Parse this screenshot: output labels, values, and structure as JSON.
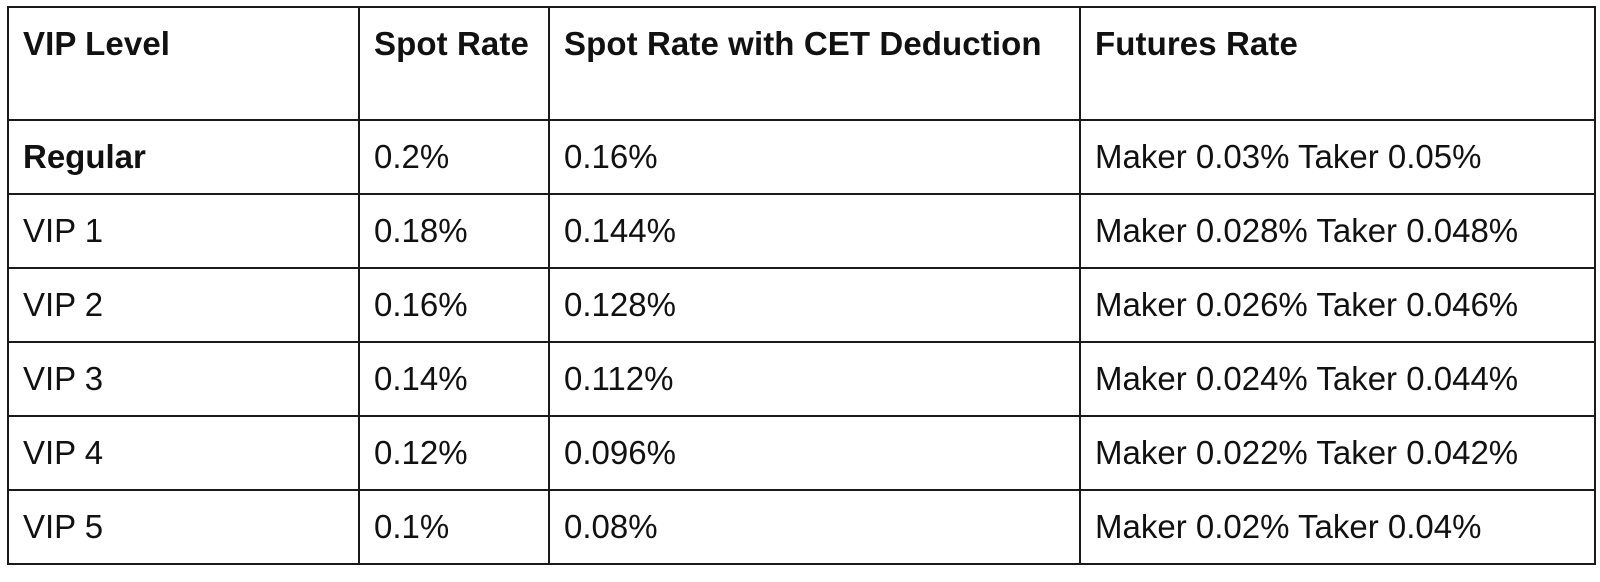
{
  "table": {
    "headers": [
      "VIP Level",
      "Spot Rate",
      "Spot Rate with CET Deduction",
      "Futures Rate"
    ],
    "rows": [
      [
        "Regular",
        "0.2%",
        "0.16%",
        "Maker 0.03% Taker 0.05%"
      ],
      [
        "VIP 1",
        "0.18%",
        "0.144%",
        "Maker 0.028% Taker 0.048%"
      ],
      [
        "VIP 2",
        "0.16%",
        "0.128%",
        "Maker 0.026% Taker 0.046%"
      ],
      [
        "VIP 3",
        "0.14%",
        "0.112%",
        "Maker 0.024% Taker 0.044%"
      ],
      [
        "VIP 4",
        "0.12%",
        "0.096%",
        "Maker 0.022% Taker 0.042%"
      ],
      [
        "VIP 5",
        "0.1%",
        "0.08%",
        "Maker 0.02% Taker 0.04%"
      ]
    ]
  }
}
